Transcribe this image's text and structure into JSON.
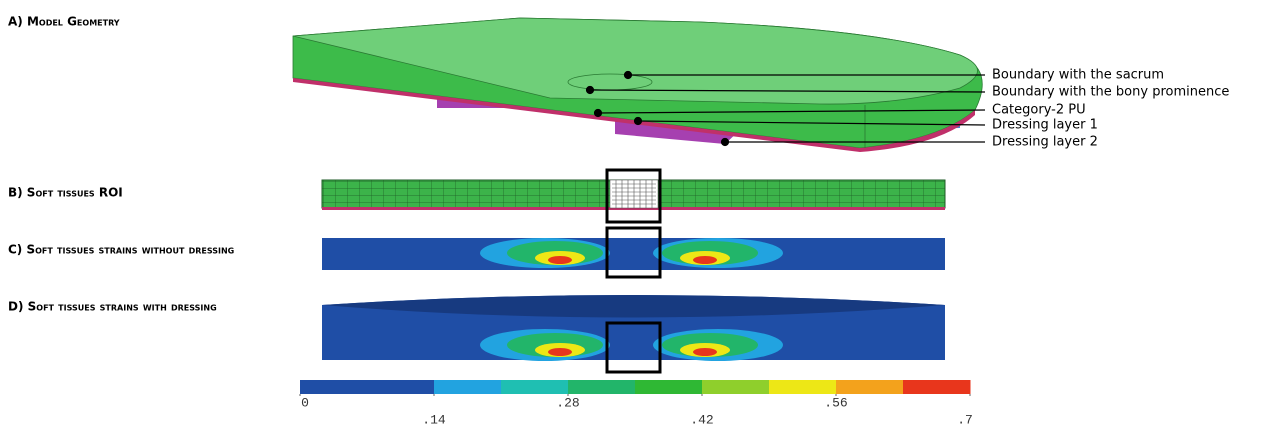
{
  "panels": [
    {
      "label": "A) Model Geometry"
    },
    {
      "label": "B) Soft tissues ROI"
    },
    {
      "label": "C) Soft tissues strains without dressing"
    },
    {
      "label": "D) Soft tissues  strains with dressing"
    }
  ],
  "annotations": [
    "Boundary with the sacrum",
    "Boundary with the bony prominence",
    "Category-2 PU",
    "Dressing layer 1",
    "Dressing layer 2"
  ],
  "colorbar": {
    "lim": [
      0,
      0.7
    ],
    "ticks": [
      0,
      {
        "value": 0.14,
        "label": ".14"
      },
      {
        "value": 0.28,
        "label": ".28"
      },
      {
        "value": 0.42,
        "label": ".42"
      },
      {
        "value": 0.56,
        "label": ".56"
      },
      {
        "value": 0.7,
        "label": ".7"
      }
    ],
    "colors": [
      "#1f4ea6",
      "#1f4ea6",
      "#22a3e0",
      "#1fbfb2",
      "#22b56a",
      "#2fb834",
      "#8fcf2c",
      "#ede716",
      "#f3a21c",
      "#e8361c"
    ]
  }
}
